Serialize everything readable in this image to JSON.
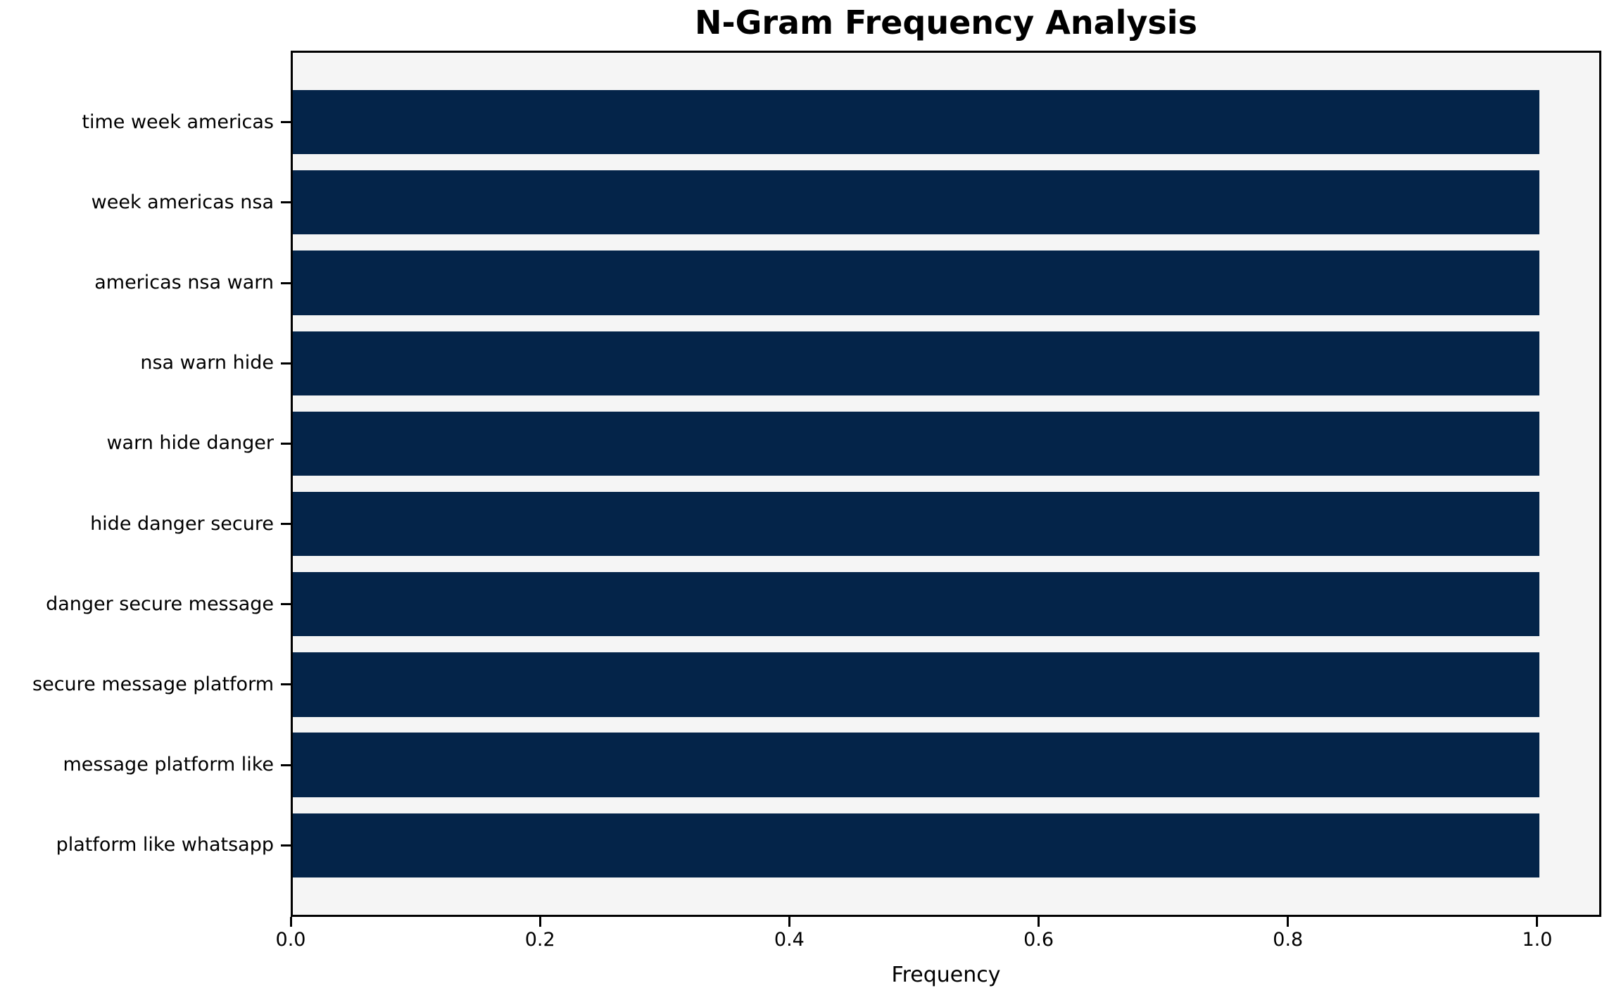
{
  "chart_data": {
    "type": "bar",
    "orientation": "horizontal",
    "title": "N-Gram Frequency Analysis",
    "xlabel": "Frequency",
    "ylabel": "",
    "categories": [
      "time week americas",
      "week americas nsa",
      "americas nsa warn",
      "nsa warn hide",
      "warn hide danger",
      "hide danger secure",
      "danger secure message",
      "secure message platform",
      "message platform like",
      "platform like whatsapp"
    ],
    "values": [
      1.0,
      1.0,
      1.0,
      1.0,
      1.0,
      1.0,
      1.0,
      1.0,
      1.0,
      1.0
    ],
    "x_ticks": [
      "0.0",
      "0.2",
      "0.4",
      "0.6",
      "0.8",
      "1.0"
    ],
    "x_tick_values": [
      0.0,
      0.2,
      0.4,
      0.6,
      0.8,
      1.0
    ],
    "xlim": [
      0,
      1.048
    ],
    "grid": false,
    "legend": null,
    "bar_color": "#042449",
    "plot_background": "#f5f5f5",
    "figure_background": "#ffffff",
    "spine_color": "#000000"
  }
}
